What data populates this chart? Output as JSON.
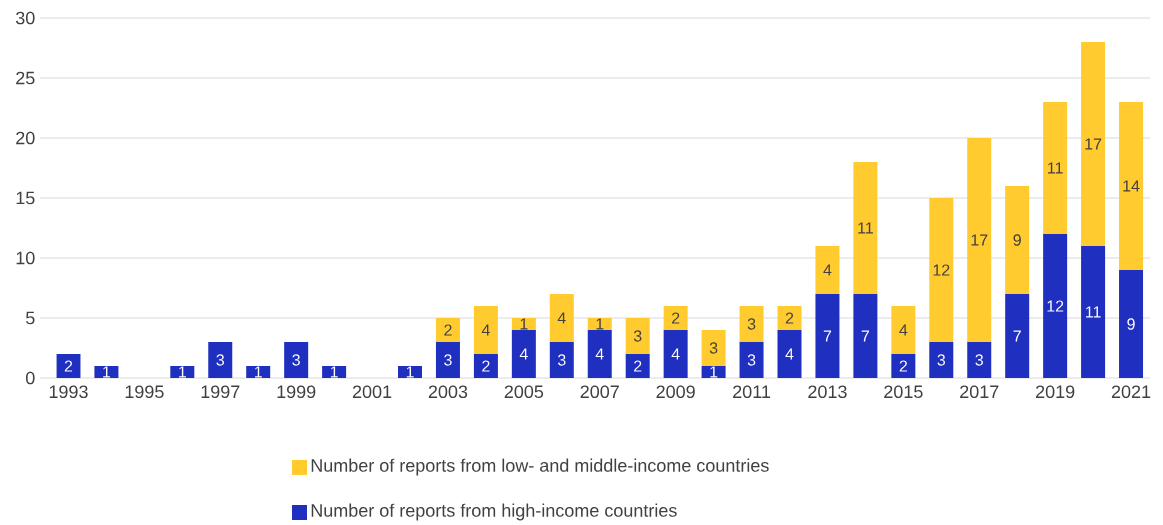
{
  "chart_data": {
    "type": "bar",
    "stacked": true,
    "categories": [
      "1993",
      null,
      "1995",
      null,
      "1997",
      null,
      "1999",
      null,
      "2001",
      null,
      "2003",
      null,
      "2005",
      null,
      "2007",
      null,
      "2009",
      null,
      "2011",
      null,
      "2013",
      null,
      "2015",
      null,
      "2017",
      null,
      "2019",
      null,
      "2021"
    ],
    "series": [
      {
        "name": "Number of reports from high-income countries",
        "color": "#1f2fbf",
        "values": [
          2,
          1,
          0,
          1,
          3,
          1,
          3,
          1,
          0,
          1,
          3,
          2,
          4,
          3,
          4,
          2,
          4,
          1,
          3,
          4,
          7,
          7,
          2,
          3,
          3,
          7,
          12,
          11,
          9
        ],
        "value_labels": [
          "2",
          "1",
          null,
          "1",
          "3",
          "1",
          "3",
          "1",
          null,
          "1",
          "3",
          "2",
          "4",
          "3",
          "4",
          "2",
          "4",
          "1",
          "3",
          "4",
          "7",
          "7",
          "2",
          "3",
          "3",
          "7",
          "12",
          "11",
          "9"
        ]
      },
      {
        "name": "Number of reports from low- and middle-income countries",
        "color": "#ffcb2f",
        "values": [
          0,
          0,
          0,
          0,
          0,
          0,
          0,
          0,
          0,
          0,
          2,
          4,
          1,
          4,
          1,
          3,
          2,
          3,
          3,
          2,
          4,
          11,
          4,
          12,
          17,
          9,
          11,
          17,
          14
        ],
        "value_labels": [
          null,
          null,
          null,
          null,
          null,
          null,
          null,
          null,
          null,
          null,
          "2",
          "4",
          "1",
          "4",
          "1",
          "3",
          "2",
          "3",
          "3",
          "2",
          "4",
          "11",
          "4",
          "12",
          "17",
          "9",
          "11",
          "17",
          "14"
        ]
      }
    ],
    "ylim": [
      0,
      30
    ],
    "yticks": [
      0,
      5,
      10,
      15,
      20,
      25,
      30
    ],
    "grid": "y",
    "legend": "bottom"
  }
}
